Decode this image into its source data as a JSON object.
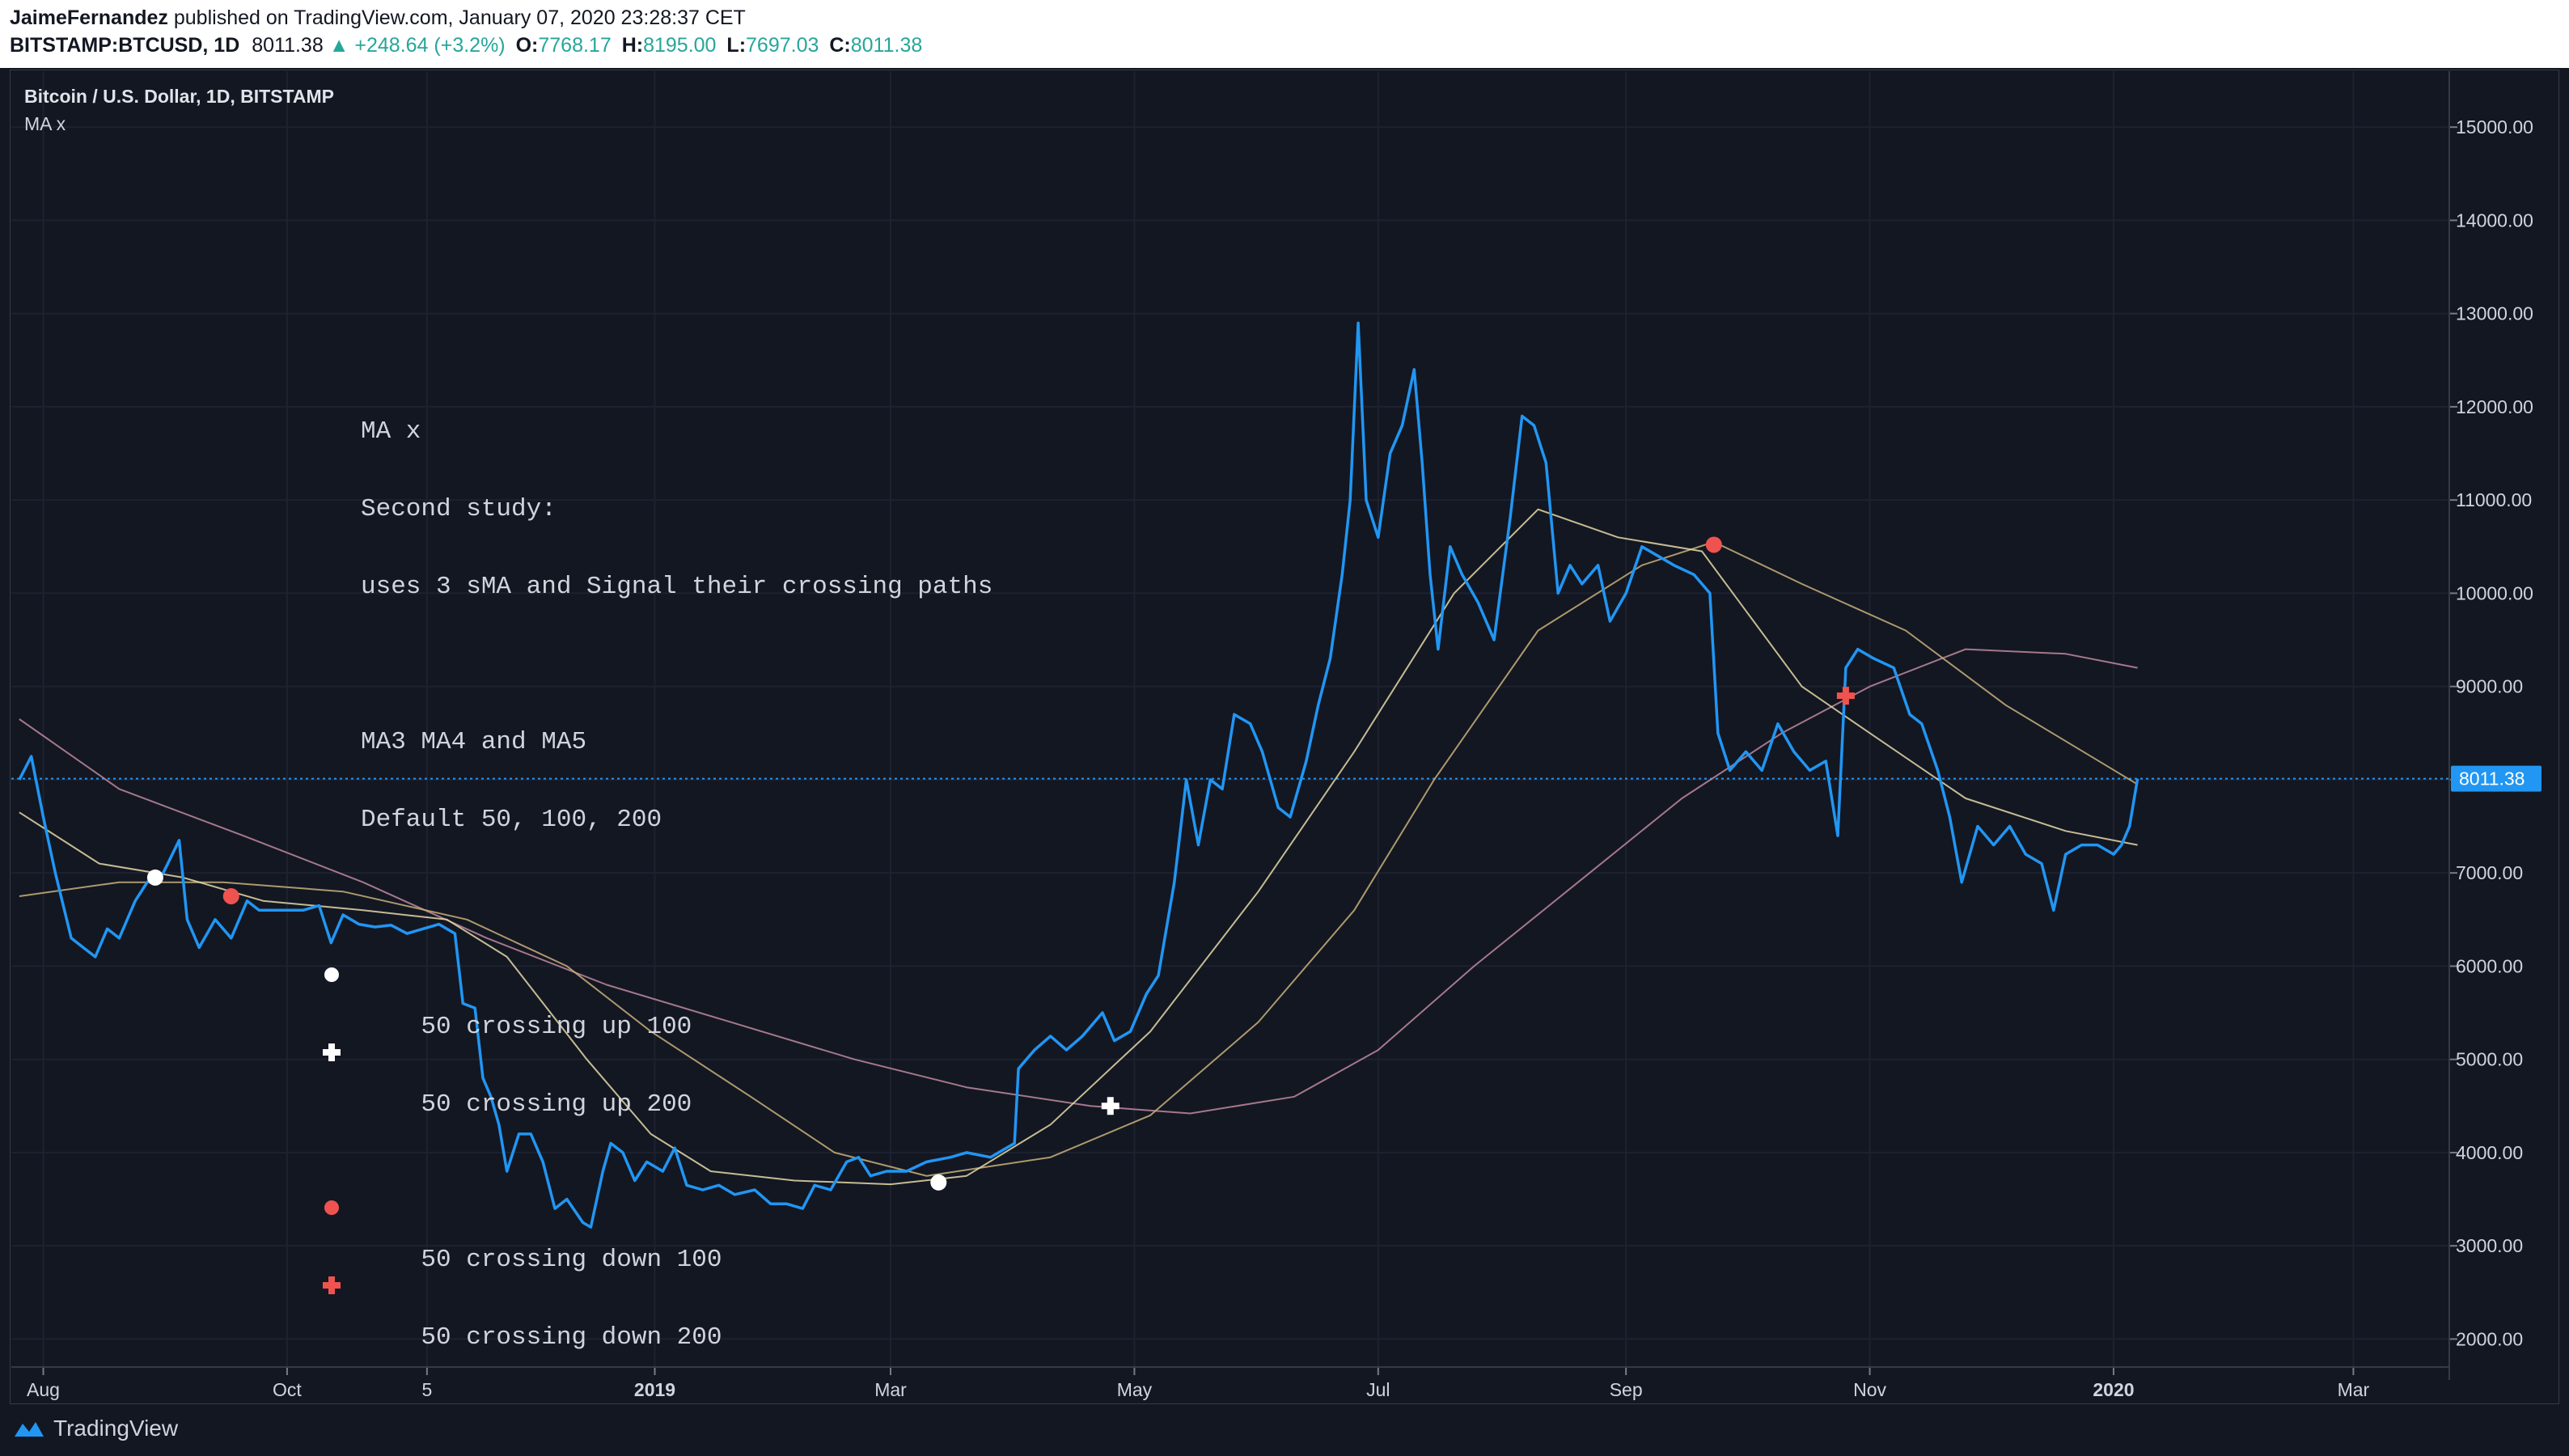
{
  "header": {
    "author": "JaimeFernandez",
    "published_text": "published on TradingView.com, January 07, 2020 23:28:37 CET",
    "symbol": "BITSTAMP:BTCUSD, 1D",
    "last": "8011.38",
    "change": "+248.64 (+3.2%)",
    "open_label": "O:",
    "open": "7768.17",
    "high_label": "H:",
    "high": "8195.00",
    "low_label": "L:",
    "low": "7697.03",
    "close_label": "C:",
    "close": "8011.38"
  },
  "legend": {
    "title": "Bitcoin / U.S. Dollar, 1D, BITSTAMP",
    "study": "MA x"
  },
  "note": {
    "line1": "MA x",
    "line2": "Second study:",
    "line3": "uses 3 sMA and Signal their crossing paths",
    "line4": "MA3 MA4 and MA5",
    "line5": "Default 50, 100, 200",
    "up100": "50 crossing up 100",
    "up200": "50 crossing up 200",
    "down100": "50 crossing down 100",
    "down200": "50 crossing down 200"
  },
  "footer": {
    "brand": "TradingView"
  },
  "colors": {
    "background": "#131722",
    "price_line": "#2196f3",
    "ma50": "#e5d9a8",
    "ma100": "#c9b07a",
    "ma200": "#c08a9e",
    "cross_up": "#ffffff",
    "cross_down": "#ef5350",
    "last_price_tag": "#2196f3"
  },
  "chart_data": {
    "type": "line",
    "title": "Bitcoin / U.S. Dollar, 1D, BITSTAMP",
    "ylim": [
      1700,
      15600
    ],
    "y_ticks": [
      "15000.00",
      "14000.00",
      "13000.00",
      "12000.00",
      "11000.00",
      "10000.00",
      "9000.00",
      "8000.00",
      "7000.00",
      "6000.00",
      "5000.00",
      "4000.00",
      "3000.00",
      "2000.00"
    ],
    "y_tick_values": [
      15000,
      14000,
      13000,
      12000,
      11000,
      10000,
      9000,
      8000,
      7000,
      6000,
      5000,
      4000,
      3000,
      2000
    ],
    "x_ticks": [
      {
        "label": "Aug",
        "date": "2018-08-01",
        "bold": false
      },
      {
        "label": "Oct",
        "date": "2018-10-01",
        "bold": false
      },
      {
        "label": "5",
        "date": "2018-11-05",
        "bold": false
      },
      {
        "label": "2019",
        "date": "2019-01-01",
        "bold": true
      },
      {
        "label": "Mar",
        "date": "2019-03-01",
        "bold": false
      },
      {
        "label": "May",
        "date": "2019-05-01",
        "bold": false
      },
      {
        "label": "Jul",
        "date": "2019-07-01",
        "bold": false
      },
      {
        "label": "Sep",
        "date": "2019-09-01",
        "bold": false
      },
      {
        "label": "Nov",
        "date": "2019-11-01",
        "bold": false
      },
      {
        "label": "2020",
        "date": "2020-01-01",
        "bold": true
      },
      {
        "label": "Mar",
        "date": "2020-03-01",
        "bold": false
      }
    ],
    "last_price_label": "8011.38",
    "last_price": 8011.38,
    "series": [
      {
        "name": "BTCUSD",
        "points": [
          [
            "2018-07-26",
            8000
          ],
          [
            "2018-07-29",
            8250
          ],
          [
            "2018-08-01",
            7600
          ],
          [
            "2018-08-04",
            7000
          ],
          [
            "2018-08-08",
            6300
          ],
          [
            "2018-08-11",
            6200
          ],
          [
            "2018-08-14",
            6100
          ],
          [
            "2018-08-17",
            6400
          ],
          [
            "2018-08-20",
            6300
          ],
          [
            "2018-08-24",
            6700
          ],
          [
            "2018-08-27",
            6900
          ],
          [
            "2018-08-31",
            7000
          ],
          [
            "2018-09-04",
            7350
          ],
          [
            "2018-09-06",
            6500
          ],
          [
            "2018-09-09",
            6200
          ],
          [
            "2018-09-13",
            6500
          ],
          [
            "2018-09-17",
            6300
          ],
          [
            "2018-09-21",
            6700
          ],
          [
            "2018-09-24",
            6600
          ],
          [
            "2018-09-28",
            6600
          ],
          [
            "2018-10-01",
            6600
          ],
          [
            "2018-10-05",
            6600
          ],
          [
            "2018-10-09",
            6650
          ],
          [
            "2018-10-12",
            6250
          ],
          [
            "2018-10-15",
            6550
          ],
          [
            "2018-10-19",
            6450
          ],
          [
            "2018-10-23",
            6420
          ],
          [
            "2018-10-27",
            6440
          ],
          [
            "2018-10-31",
            6350
          ],
          [
            "2018-11-04",
            6400
          ],
          [
            "2018-11-08",
            6450
          ],
          [
            "2018-11-12",
            6350
          ],
          [
            "2018-11-14",
            5600
          ],
          [
            "2018-11-17",
            5550
          ],
          [
            "2018-11-19",
            4800
          ],
          [
            "2018-11-21",
            4600
          ],
          [
            "2018-11-23",
            4300
          ],
          [
            "2018-11-25",
            3800
          ],
          [
            "2018-11-28",
            4200
          ],
          [
            "2018-12-01",
            4200
          ],
          [
            "2018-12-04",
            3900
          ],
          [
            "2018-12-07",
            3400
          ],
          [
            "2018-12-10",
            3500
          ],
          [
            "2018-12-14",
            3250
          ],
          [
            "2018-12-16",
            3200
          ],
          [
            "2018-12-19",
            3800
          ],
          [
            "2018-12-21",
            4100
          ],
          [
            "2018-12-24",
            4000
          ],
          [
            "2018-12-27",
            3700
          ],
          [
            "2018-12-30",
            3900
          ],
          [
            "2019-01-03",
            3800
          ],
          [
            "2019-01-06",
            4050
          ],
          [
            "2019-01-09",
            3650
          ],
          [
            "2019-01-13",
            3600
          ],
          [
            "2019-01-17",
            3650
          ],
          [
            "2019-01-21",
            3550
          ],
          [
            "2019-01-26",
            3600
          ],
          [
            "2019-01-30",
            3450
          ],
          [
            "2019-02-03",
            3450
          ],
          [
            "2019-02-07",
            3400
          ],
          [
            "2019-02-10",
            3650
          ],
          [
            "2019-02-14",
            3600
          ],
          [
            "2019-02-18",
            3900
          ],
          [
            "2019-02-21",
            3950
          ],
          [
            "2019-02-24",
            3750
          ],
          [
            "2019-02-28",
            3800
          ],
          [
            "2019-03-05",
            3800
          ],
          [
            "2019-03-10",
            3900
          ],
          [
            "2019-03-16",
            3950
          ],
          [
            "2019-03-20",
            4000
          ],
          [
            "2019-03-26",
            3950
          ],
          [
            "2019-04-01",
            4100
          ],
          [
            "2019-04-02",
            4900
          ],
          [
            "2019-04-06",
            5100
          ],
          [
            "2019-04-10",
            5250
          ],
          [
            "2019-04-14",
            5100
          ],
          [
            "2019-04-18",
            5250
          ],
          [
            "2019-04-23",
            5500
          ],
          [
            "2019-04-26",
            5200
          ],
          [
            "2019-04-30",
            5300
          ],
          [
            "2019-05-04",
            5700
          ],
          [
            "2019-05-07",
            5900
          ],
          [
            "2019-05-11",
            6900
          ],
          [
            "2019-05-14",
            8000
          ],
          [
            "2019-05-17",
            7300
          ],
          [
            "2019-05-20",
            8000
          ],
          [
            "2019-05-23",
            7900
          ],
          [
            "2019-05-26",
            8700
          ],
          [
            "2019-05-30",
            8600
          ],
          [
            "2019-06-02",
            8300
          ],
          [
            "2019-06-06",
            7700
          ],
          [
            "2019-06-09",
            7600
          ],
          [
            "2019-06-13",
            8200
          ],
          [
            "2019-06-16",
            8800
          ],
          [
            "2019-06-19",
            9300
          ],
          [
            "2019-06-22",
            10200
          ],
          [
            "2019-06-24",
            11000
          ],
          [
            "2019-06-26",
            12900
          ],
          [
            "2019-06-28",
            11000
          ],
          [
            "2019-07-01",
            10600
          ],
          [
            "2019-07-04",
            11500
          ],
          [
            "2019-07-07",
            11800
          ],
          [
            "2019-07-10",
            12400
          ],
          [
            "2019-07-12",
            11400
          ],
          [
            "2019-07-14",
            10200
          ],
          [
            "2019-07-16",
            9400
          ],
          [
            "2019-07-19",
            10500
          ],
          [
            "2019-07-22",
            10200
          ],
          [
            "2019-07-26",
            9900
          ],
          [
            "2019-07-30",
            9500
          ],
          [
            "2019-08-03",
            10800
          ],
          [
            "2019-08-06",
            11900
          ],
          [
            "2019-08-09",
            11800
          ],
          [
            "2019-08-12",
            11400
          ],
          [
            "2019-08-15",
            10000
          ],
          [
            "2019-08-18",
            10300
          ],
          [
            "2019-08-21",
            10100
          ],
          [
            "2019-08-25",
            10300
          ],
          [
            "2019-08-28",
            9700
          ],
          [
            "2019-09-01",
            10000
          ],
          [
            "2019-09-05",
            10500
          ],
          [
            "2019-09-09",
            10400
          ],
          [
            "2019-09-13",
            10300
          ],
          [
            "2019-09-18",
            10200
          ],
          [
            "2019-09-22",
            10000
          ],
          [
            "2019-09-24",
            8500
          ],
          [
            "2019-09-27",
            8100
          ],
          [
            "2019-10-01",
            8300
          ],
          [
            "2019-10-05",
            8100
          ],
          [
            "2019-10-09",
            8600
          ],
          [
            "2019-10-13",
            8300
          ],
          [
            "2019-10-17",
            8100
          ],
          [
            "2019-10-21",
            8200
          ],
          [
            "2019-10-24",
            7400
          ],
          [
            "2019-10-26",
            9200
          ],
          [
            "2019-10-29",
            9400
          ],
          [
            "2019-11-02",
            9300
          ],
          [
            "2019-11-07",
            9200
          ],
          [
            "2019-11-11",
            8700
          ],
          [
            "2019-11-14",
            8600
          ],
          [
            "2019-11-18",
            8100
          ],
          [
            "2019-11-21",
            7600
          ],
          [
            "2019-11-24",
            6900
          ],
          [
            "2019-11-28",
            7500
          ],
          [
            "2019-12-02",
            7300
          ],
          [
            "2019-12-06",
            7500
          ],
          [
            "2019-12-10",
            7200
          ],
          [
            "2019-12-14",
            7100
          ],
          [
            "2019-12-17",
            6600
          ],
          [
            "2019-12-20",
            7200
          ],
          [
            "2019-12-24",
            7300
          ],
          [
            "2019-12-28",
            7300
          ],
          [
            "2020-01-01",
            7200
          ],
          [
            "2020-01-03",
            7300
          ],
          [
            "2020-01-05",
            7500
          ],
          [
            "2020-01-07",
            8011
          ]
        ]
      },
      {
        "name": "MA50",
        "points": [
          [
            "2018-07-26",
            7650
          ],
          [
            "2018-08-15",
            7100
          ],
          [
            "2018-09-05",
            6950
          ],
          [
            "2018-09-25",
            6700
          ],
          [
            "2018-10-20",
            6600
          ],
          [
            "2018-11-10",
            6500
          ],
          [
            "2018-11-25",
            6100
          ],
          [
            "2018-12-15",
            5000
          ],
          [
            "2018-12-31",
            4200
          ],
          [
            "2019-01-15",
            3800
          ],
          [
            "2019-02-05",
            3700
          ],
          [
            "2019-03-01",
            3660
          ],
          [
            "2019-03-20",
            3750
          ],
          [
            "2019-04-10",
            4300
          ],
          [
            "2019-05-05",
            5300
          ],
          [
            "2019-06-01",
            6800
          ],
          [
            "2019-06-25",
            8300
          ],
          [
            "2019-07-20",
            10000
          ],
          [
            "2019-08-10",
            10900
          ],
          [
            "2019-08-30",
            10600
          ],
          [
            "2019-09-20",
            10450
          ],
          [
            "2019-10-15",
            9000
          ],
          [
            "2019-11-01",
            8500
          ],
          [
            "2019-11-25",
            7800
          ],
          [
            "2019-12-20",
            7450
          ],
          [
            "2020-01-07",
            7300
          ]
        ]
      },
      {
        "name": "MA100",
        "points": [
          [
            "2018-07-26",
            6750
          ],
          [
            "2018-08-20",
            6900
          ],
          [
            "2018-09-15",
            6900
          ],
          [
            "2018-10-15",
            6800
          ],
          [
            "2018-11-15",
            6500
          ],
          [
            "2018-12-10",
            6000
          ],
          [
            "2018-12-31",
            5300
          ],
          [
            "2019-01-25",
            4600
          ],
          [
            "2019-02-15",
            4000
          ],
          [
            "2019-03-10",
            3750
          ],
          [
            "2019-04-10",
            3950
          ],
          [
            "2019-05-05",
            4400
          ],
          [
            "2019-06-01",
            5400
          ],
          [
            "2019-06-25",
            6600
          ],
          [
            "2019-07-15",
            8000
          ],
          [
            "2019-08-10",
            9600
          ],
          [
            "2019-09-05",
            10300
          ],
          [
            "2019-09-23",
            10550
          ],
          [
            "2019-10-15",
            10100
          ],
          [
            "2019-11-10",
            9600
          ],
          [
            "2019-12-05",
            8800
          ],
          [
            "2020-01-07",
            7950
          ]
        ]
      },
      {
        "name": "MA200",
        "points": [
          [
            "2018-07-26",
            8650
          ],
          [
            "2018-08-20",
            7900
          ],
          [
            "2018-09-20",
            7400
          ],
          [
            "2018-10-20",
            6900
          ],
          [
            "2018-11-20",
            6300
          ],
          [
            "2018-12-20",
            5800
          ],
          [
            "2019-01-20",
            5400
          ],
          [
            "2019-02-20",
            5000
          ],
          [
            "2019-03-20",
            4700
          ],
          [
            "2019-04-20",
            4500
          ],
          [
            "2019-05-15",
            4420
          ],
          [
            "2019-06-10",
            4600
          ],
          [
            "2019-07-01",
            5100
          ],
          [
            "2019-07-25",
            6000
          ],
          [
            "2019-08-20",
            6900
          ],
          [
            "2019-09-15",
            7800
          ],
          [
            "2019-10-10",
            8500
          ],
          [
            "2019-11-01",
            9000
          ],
          [
            "2019-11-25",
            9400
          ],
          [
            "2019-12-20",
            9350
          ],
          [
            "2020-01-07",
            9200
          ]
        ]
      }
    ],
    "markers": [
      {
        "type": "cross_up_100",
        "date": "2018-08-29",
        "value": 6950
      },
      {
        "type": "cross_down_100",
        "date": "2018-09-17",
        "value": 6750
      },
      {
        "type": "cross_up_100",
        "date": "2019-03-13",
        "value": 3680
      },
      {
        "type": "cross_up_200",
        "date": "2019-04-25",
        "value": 4500
      },
      {
        "type": "cross_down_100",
        "date": "2019-09-23",
        "value": 10520
      },
      {
        "type": "cross_down_200",
        "date": "2019-10-26",
        "value": 8900
      }
    ]
  }
}
